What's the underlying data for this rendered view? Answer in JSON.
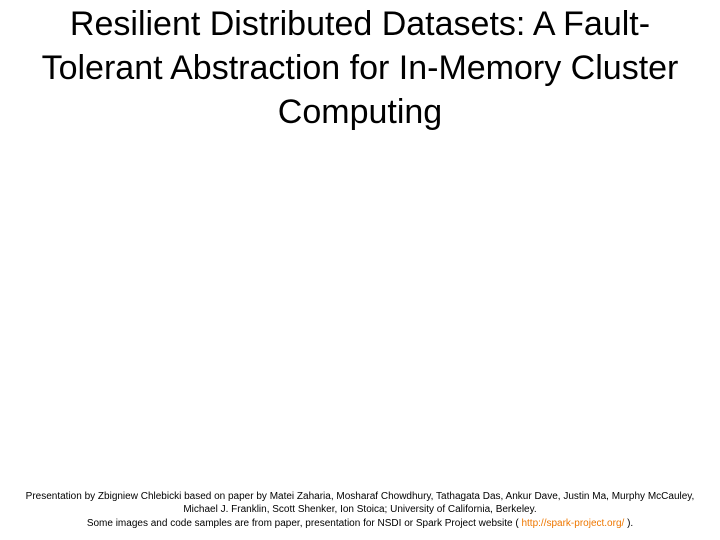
{
  "slide": {
    "title": "Resilient Distributed Datasets: A Fault-Tolerant Abstraction for In-Memory Cluster Computing",
    "footer": {
      "line1": "Presentation by Zbigniew Chlebicki based on paper by Matei Zaharia, Mosharaf Chowdhury, Tathagata Das, Ankur Dave, Justin Ma, Murphy McCauley, Michael J. Franklin, Scott Shenker, Ion Stoica; University of California, Berkeley.",
      "line2_prefix": "Some images and code samples are from paper, presentation for NSDI or Spark Project website ( ",
      "link": "http://spark-project.org/",
      "line2_suffix": " )."
    }
  },
  "styling": {
    "background_color": "#ffffff",
    "title_color": "#000000",
    "title_fontsize": 34,
    "footer_fontsize": 10,
    "footer_color": "#000000",
    "link_color": "#ee7700",
    "slide_width": 720,
    "slide_height": 540
  }
}
